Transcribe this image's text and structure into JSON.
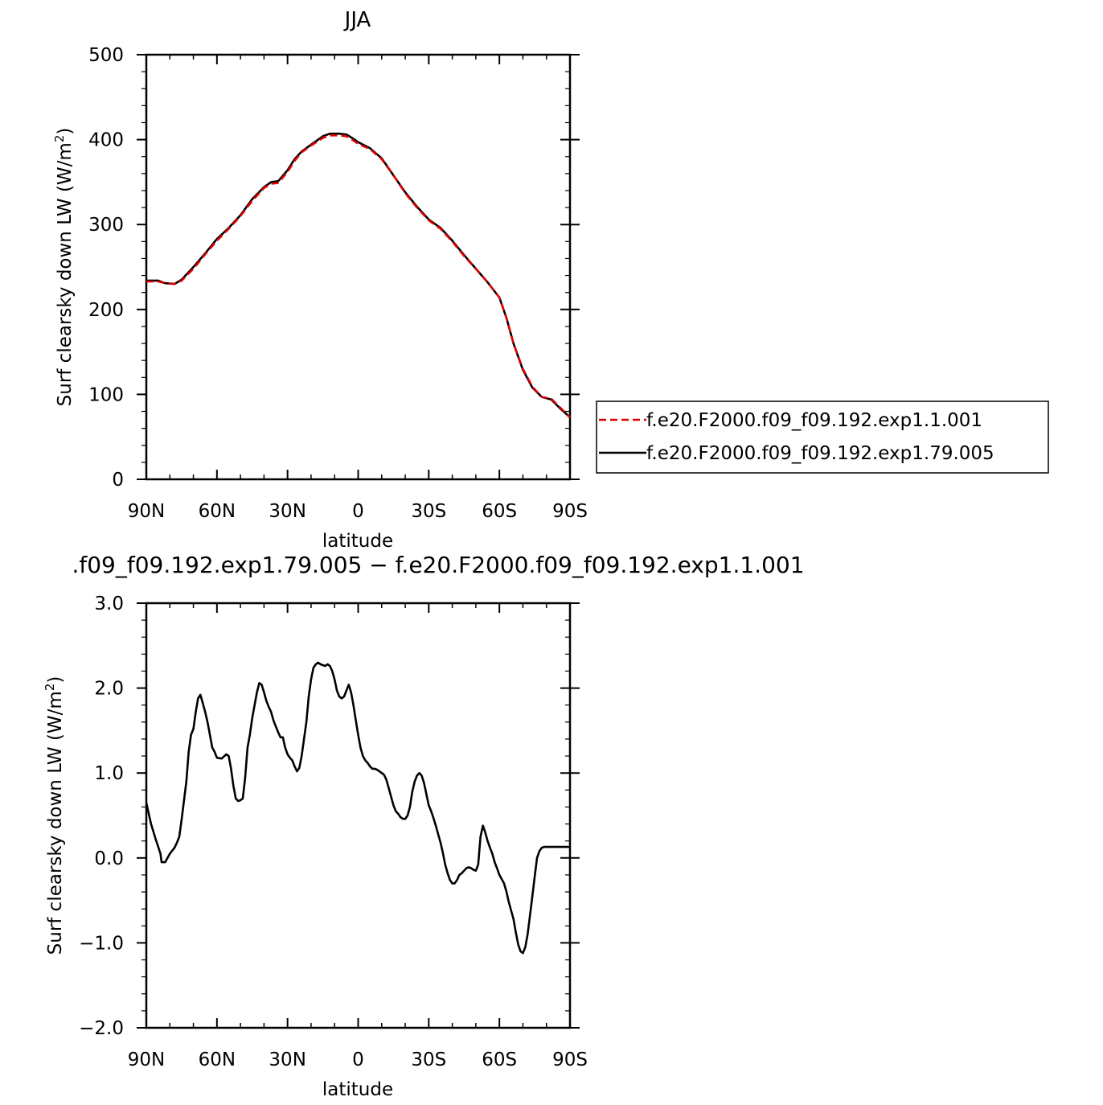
{
  "top": {
    "title": "JJA",
    "xlabel": "latitude",
    "ylabel": "Surf  clearsky  down  LW  (W/m",
    "ylabel_sup": "2",
    "ylabel_close": ")",
    "yticks": [
      "0",
      "100",
      "200",
      "300",
      "400",
      "500"
    ],
    "xticks": [
      "90N",
      "60N",
      "30N",
      "0",
      "30S",
      "60S",
      "90S"
    ],
    "legend": [
      {
        "label": "f.e20.F2000.f09_f09.192.exp1.1.001",
        "color": "#e00000",
        "dash": true
      },
      {
        "label": "f.e20.F2000.f09_f09.192.exp1.79.005",
        "color": "#000000",
        "dash": false
      }
    ]
  },
  "bottom": {
    "title": ".f09_f09.192.exp1.79.005  −  f.e20.F2000.f09_f09.192.exp1.1.001",
    "xlabel": "latitude",
    "ylabel": "Surf  clearsky  down  LW  (W/m",
    "ylabel_sup": "2",
    "ylabel_close": ")",
    "yticks": [
      "−2.0",
      "−1.0",
      "0.0",
      "1.0",
      "2.0",
      "3.0"
    ],
    "xticks": [
      "90N",
      "60N",
      "30N",
      "0",
      "30S",
      "60S",
      "90S"
    ]
  },
  "chart_data": [
    {
      "type": "line",
      "title": "JJA",
      "xlabel": "latitude",
      "ylabel": "Surf clearsky down LW (W/m2)",
      "xlim": [
        90,
        -90
      ],
      "ylim": [
        0,
        500
      ],
      "legend_position": "right",
      "series": [
        {
          "name": "f.e20.F2000.f09_f09.192.exp1.1.001",
          "color": "#e00000",
          "style": "dashed",
          "x": [
            90,
            85,
            82,
            78,
            75,
            70,
            65,
            60,
            55,
            50,
            45,
            40,
            37,
            34,
            30,
            27,
            24,
            20,
            15,
            12,
            8,
            5,
            2,
            0,
            -5,
            -10,
            -15,
            -20,
            -25,
            -30,
            -35,
            -40,
            -45,
            -50,
            -55,
            -60,
            -63,
            -66,
            -70,
            -74,
            -78,
            -82,
            -86,
            -90
          ],
          "y": [
            233,
            233,
            231,
            230,
            234,
            248,
            265,
            281,
            295,
            310,
            328,
            343,
            348,
            349,
            362,
            375,
            385,
            393,
            402,
            405,
            405,
            404,
            399,
            395,
            389,
            377,
            358,
            337,
            320,
            305,
            295,
            280,
            263,
            248,
            232,
            214,
            190,
            160,
            130,
            109,
            97,
            95,
            84,
            73
          ]
        },
        {
          "name": "f.e20.F2000.f09_f09.192.exp1.79.005",
          "color": "#000000",
          "style": "solid",
          "x": [
            90,
            85,
            82,
            78,
            75,
            70,
            65,
            60,
            55,
            50,
            45,
            40,
            37,
            34,
            30,
            27,
            24,
            20,
            15,
            12,
            8,
            5,
            2,
            0,
            -5,
            -10,
            -15,
            -20,
            -25,
            -30,
            -35,
            -40,
            -45,
            -50,
            -55,
            -60,
            -63,
            -66,
            -70,
            -74,
            -78,
            -82,
            -86,
            -90
          ],
          "y": [
            234,
            234,
            231,
            230,
            235,
            250,
            266,
            283,
            296,
            311,
            330,
            344,
            350,
            351,
            364,
            377,
            386,
            394,
            404,
            407,
            407,
            406,
            401,
            397,
            390,
            378,
            358,
            338,
            321,
            306,
            296,
            281,
            264,
            248,
            232,
            214,
            190,
            160,
            129,
            108,
            97,
            94,
            83,
            73
          ]
        }
      ]
    },
    {
      "type": "line",
      "title": ".f09_f09.192.exp1.79.005 − f.e20.F2000.f09_f09.192.exp1.1.001",
      "xlabel": "latitude",
      "ylabel": "Surf clearsky down LW (W/m2)",
      "xlim": [
        90,
        -90
      ],
      "ylim": [
        -2.0,
        3.0
      ],
      "series": [
        {
          "color": "#000000",
          "style": "solid",
          "x": [
            90,
            88,
            86,
            84,
            83.5,
            82,
            80,
            78,
            77,
            76,
            75,
            73,
            72,
            71,
            70,
            69,
            68,
            67,
            66,
            65,
            64,
            63,
            62,
            61,
            60,
            58,
            56,
            55,
            54,
            53,
            52,
            51,
            50,
            49,
            48,
            47,
            46,
            45,
            44,
            43,
            42,
            41,
            40,
            39,
            38,
            37,
            36,
            35,
            34,
            33,
            32,
            31,
            30,
            29,
            28,
            27,
            26,
            25,
            24,
            22,
            21,
            20,
            19,
            18,
            17,
            16,
            14,
            13,
            12,
            11,
            10,
            9,
            8,
            7,
            6,
            5,
            4,
            3,
            2,
            1,
            0,
            -1,
            -2,
            -3,
            -4,
            -5,
            -6,
            -7,
            -8,
            -9,
            -10,
            -11,
            -12,
            -13,
            -14,
            -15,
            -16,
            -17,
            -18,
            -19,
            -20,
            -21,
            -22,
            -23,
            -24,
            -25,
            -26,
            -27,
            -28,
            -29,
            -30,
            -31,
            -32,
            -33,
            -34,
            -35,
            -36,
            -37,
            -38,
            -39,
            -40,
            -41,
            -42,
            -43,
            -44,
            -45,
            -46,
            -47,
            -48,
            -49,
            -50,
            -51,
            -52,
            -53,
            -54,
            -55,
            -56,
            -57,
            -58,
            -59,
            -60,
            -61,
            -62,
            -63,
            -64,
            -65,
            -66,
            -67,
            -68,
            -69,
            -70,
            -71,
            -72,
            -73,
            -74,
            -75,
            -76,
            -77,
            -78,
            -79,
            -80,
            -81,
            -82,
            -83,
            -84,
            -85,
            -86,
            -87,
            -88,
            -89,
            -90
          ],
          "y": [
            0.65,
            0.4,
            0.22,
            0.05,
            -0.05,
            -0.05,
            0.05,
            0.12,
            0.18,
            0.25,
            0.45,
            0.9,
            1.25,
            1.45,
            1.52,
            1.72,
            1.88,
            1.92,
            1.82,
            1.72,
            1.6,
            1.45,
            1.3,
            1.25,
            1.18,
            1.17,
            1.22,
            1.2,
            1.05,
            0.85,
            0.7,
            0.67,
            0.68,
            0.7,
            0.95,
            1.3,
            1.45,
            1.65,
            1.8,
            1.95,
            2.06,
            2.04,
            1.95,
            1.85,
            1.78,
            1.72,
            1.62,
            1.55,
            1.48,
            1.42,
            1.42,
            1.3,
            1.22,
            1.18,
            1.15,
            1.08,
            1.02,
            1.06,
            1.2,
            1.6,
            1.9,
            2.1,
            2.24,
            2.28,
            2.3,
            2.28,
            2.26,
            2.28,
            2.26,
            2.2,
            2.1,
            1.97,
            1.9,
            1.88,
            1.9,
            1.97,
            2.04,
            1.95,
            1.8,
            1.62,
            1.45,
            1.3,
            1.2,
            1.15,
            1.12,
            1.08,
            1.05,
            1.05,
            1.04,
            1.02,
            1.0,
            0.98,
            0.92,
            0.82,
            0.72,
            0.62,
            0.55,
            0.52,
            0.48,
            0.46,
            0.46,
            0.5,
            0.6,
            0.78,
            0.9,
            0.97,
            1.0,
            0.97,
            0.88,
            0.75,
            0.62,
            0.55,
            0.47,
            0.38,
            0.28,
            0.18,
            0.06,
            -0.08,
            -0.18,
            -0.26,
            -0.3,
            -0.3,
            -0.26,
            -0.2,
            -0.18,
            -0.15,
            -0.12,
            -0.11,
            -0.12,
            -0.14,
            -0.15,
            -0.08,
            0.25,
            0.38,
            0.3,
            0.2,
            0.12,
            0.05,
            -0.05,
            -0.12,
            -0.2,
            -0.25,
            -0.3,
            -0.4,
            -0.52,
            -0.62,
            -0.72,
            -0.88,
            -1.02,
            -1.1,
            -1.12,
            -1.05,
            -0.9,
            -0.68,
            -0.45,
            -0.22,
            0.0,
            0.08,
            0.12,
            0.13,
            0.13,
            0.13,
            0.13,
            0.13,
            0.13,
            0.13,
            0.13,
            0.13,
            0.13,
            0.13,
            0.13
          ]
        }
      ]
    }
  ]
}
